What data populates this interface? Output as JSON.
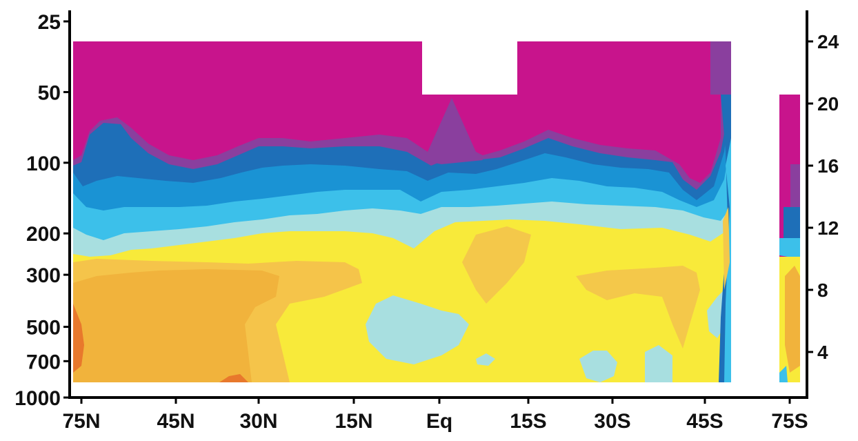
{
  "chart_data": {
    "type": "heatmap",
    "title": "",
    "xlabel": "",
    "ylabel": "",
    "y_axis_left": {
      "label": "",
      "scale": "log",
      "direction": "down",
      "range": [
        25,
        1000
      ],
      "ticks": [
        {
          "value": 25,
          "label": "25"
        },
        {
          "value": 50,
          "label": "50"
        },
        {
          "value": 100,
          "label": "100"
        },
        {
          "value": 200,
          "label": "200"
        },
        {
          "value": 300,
          "label": "300"
        },
        {
          "value": 500,
          "label": "500"
        },
        {
          "value": 700,
          "label": "700"
        },
        {
          "value": 1000,
          "label": "1000"
        }
      ]
    },
    "y_axis_right": {
      "label": "",
      "range": [
        2,
        26
      ],
      "ticks": [
        {
          "value": 24,
          "label": "24"
        },
        {
          "value": 20,
          "label": "20"
        },
        {
          "value": 16,
          "label": "16"
        },
        {
          "value": 12,
          "label": "12"
        },
        {
          "value": 8,
          "label": "8"
        },
        {
          "value": 4,
          "label": "4"
        }
      ]
    },
    "x_axis": {
      "label": "",
      "range": [
        75,
        -85
      ],
      "ticks": [
        {
          "value": 75,
          "label": "75N"
        },
        {
          "value": 45,
          "label": "45N"
        },
        {
          "value": 30,
          "label": "30N"
        },
        {
          "value": 15,
          "label": "15N"
        },
        {
          "value": 0,
          "label": "Eq"
        },
        {
          "value": -15,
          "label": "15S"
        },
        {
          "value": -30,
          "label": "30S"
        },
        {
          "value": -45,
          "label": "45S"
        },
        {
          "value": -75,
          "label": "75S"
        }
      ]
    },
    "color_levels": [
      "#c8148c",
      "#8a3f9e",
      "#1e6fb8",
      "#1a93d4",
      "#3cc0ea",
      "#a8dfe0",
      "#f8ea3a",
      "#f2e62e",
      "#f4c84a",
      "#f1b33c",
      "#e8782c"
    ],
    "grid": false,
    "legend": "none"
  }
}
